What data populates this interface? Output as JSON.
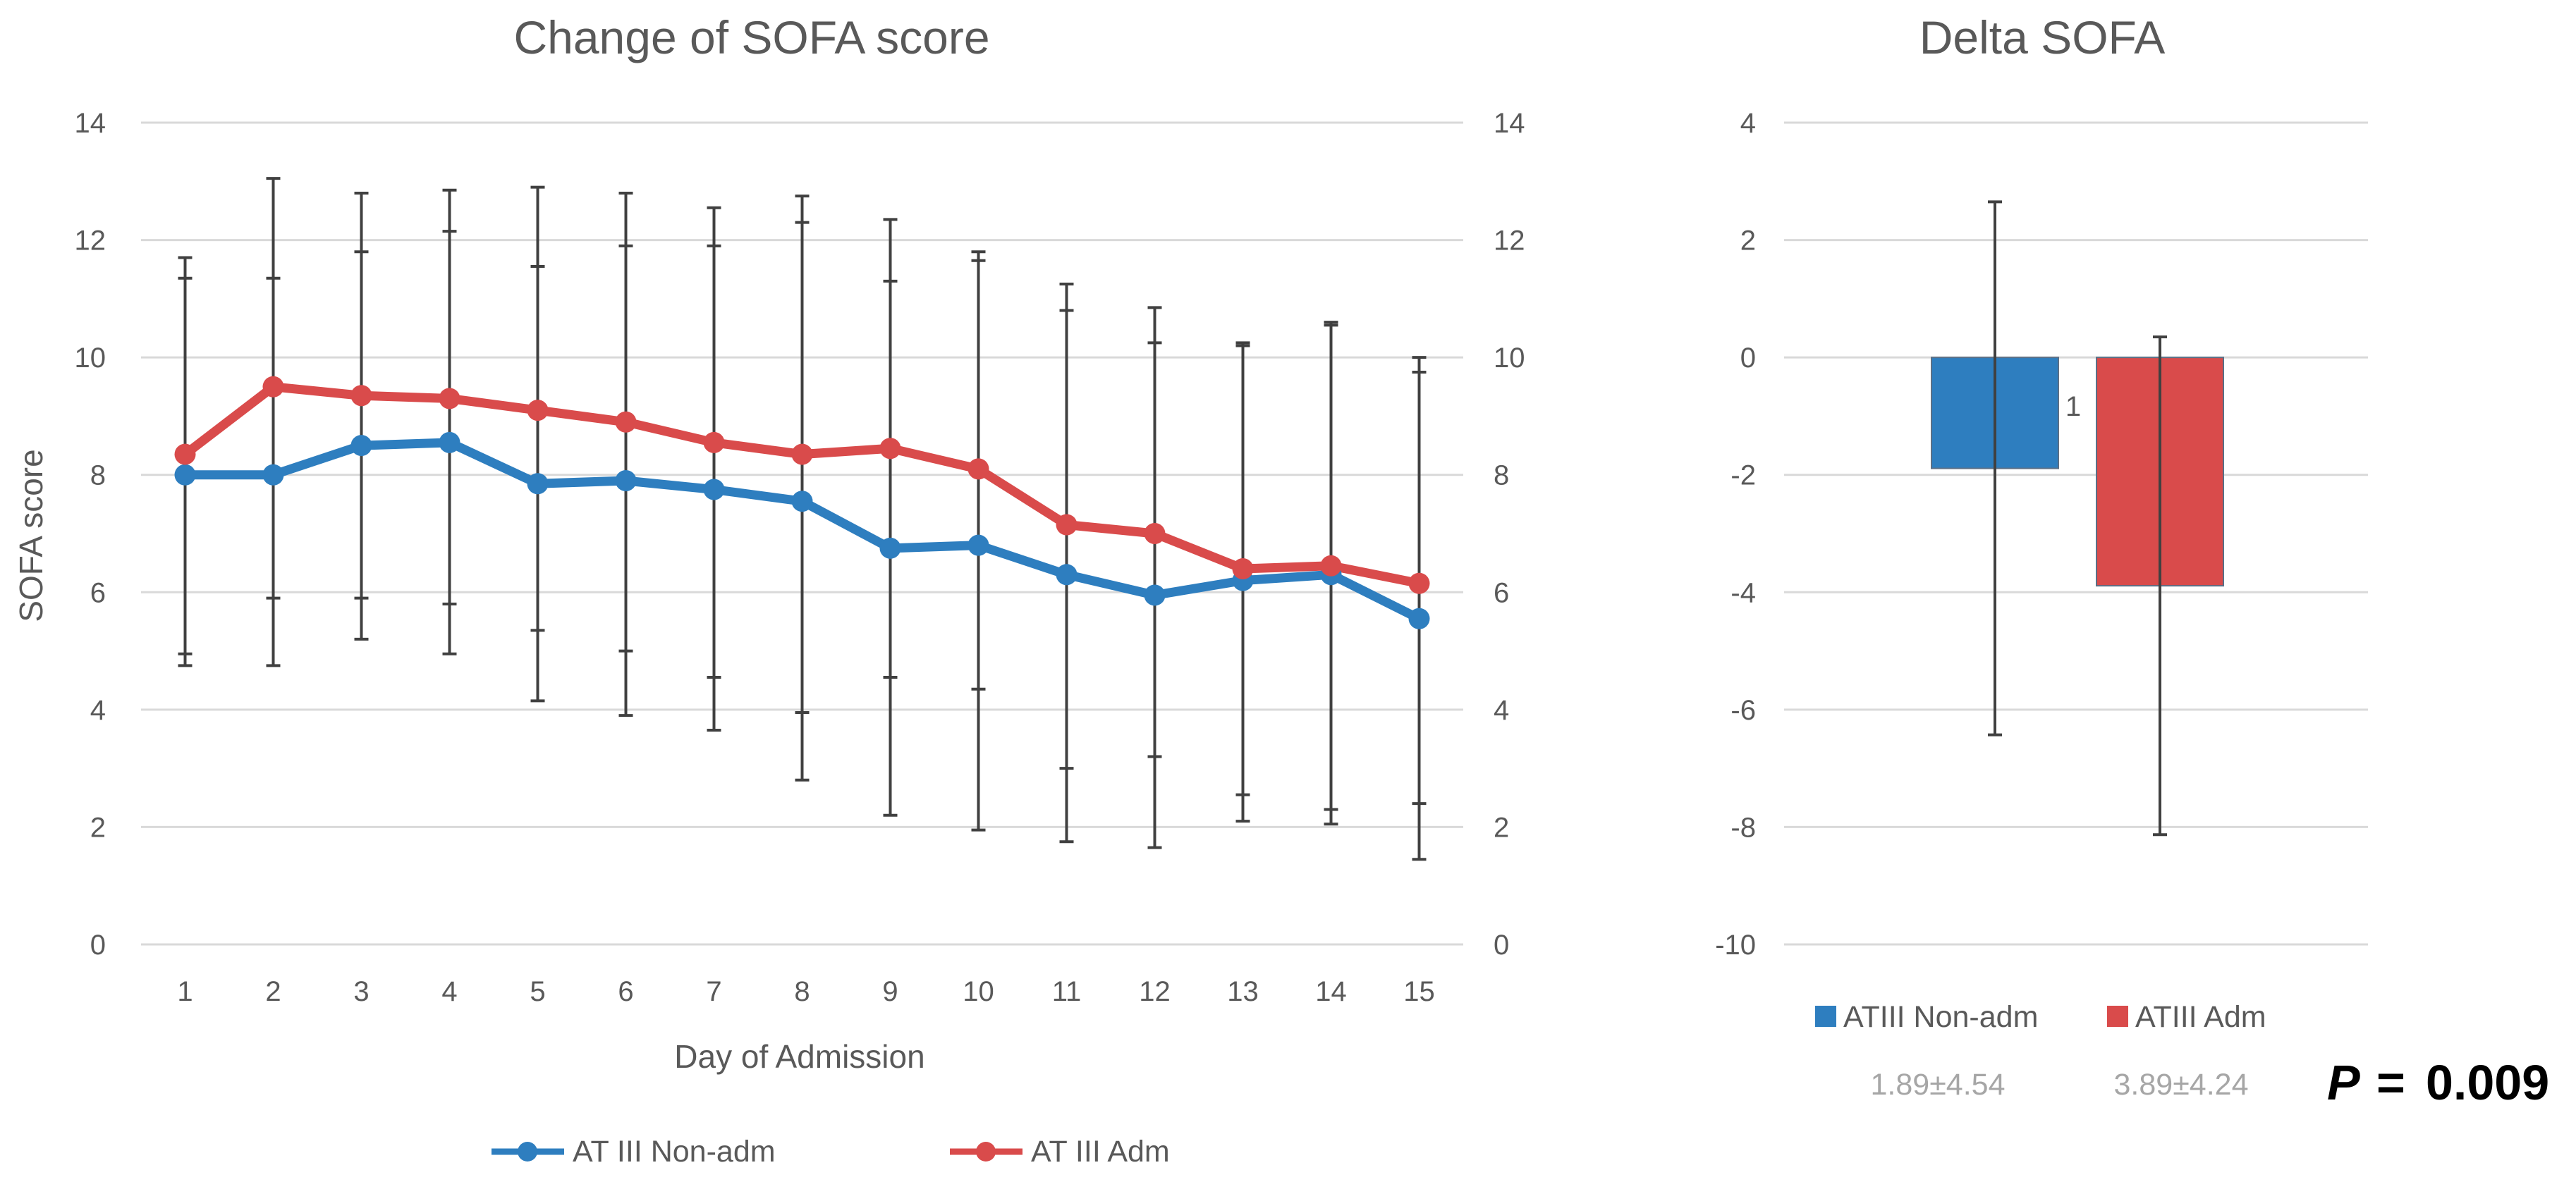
{
  "chart_data": [
    {
      "type": "line",
      "title": "Change of SOFA score",
      "xlabel": "Day of Admission",
      "ylabel": "SOFA score",
      "ylim": [
        0,
        14
      ],
      "yticks": [
        "0",
        "2",
        "4",
        "6",
        "8",
        "10",
        "12",
        "14"
      ],
      "categories": [
        "1",
        "2",
        "3",
        "4",
        "5",
        "6",
        "7",
        "8",
        "9",
        "10",
        "11",
        "12",
        "13",
        "14",
        "15"
      ],
      "grid": true,
      "legend_position": "bottom",
      "series": [
        {
          "name": "AT III Non-adm",
          "color": "#2e7ebf",
          "values": [
            8.0,
            8.0,
            8.5,
            8.55,
            7.85,
            7.9,
            7.75,
            7.55,
            6.75,
            6.8,
            6.3,
            5.95,
            6.2,
            6.3,
            5.55
          ],
          "err_upper": [
            11.35,
            11.35,
            11.8,
            12.15,
            11.55,
            11.9,
            11.9,
            12.3,
            11.3,
            11.65,
            10.8,
            10.25,
            10.2,
            10.55,
            9.75
          ],
          "err_lower": [
            4.95,
            4.75,
            5.2,
            4.95,
            4.15,
            3.9,
            3.65,
            2.8,
            2.2,
            1.95,
            1.75,
            1.65,
            2.1,
            2.05,
            1.45
          ]
        },
        {
          "name": "AT III Adm",
          "color": "#d94b4b",
          "values": [
            8.35,
            9.5,
            9.35,
            9.3,
            9.1,
            8.9,
            8.55,
            8.35,
            8.45,
            8.1,
            7.15,
            7.0,
            6.4,
            6.45,
            6.15
          ],
          "err_upper": [
            11.7,
            13.05,
            12.8,
            12.85,
            12.9,
            12.8,
            12.55,
            12.75,
            12.35,
            11.8,
            11.25,
            10.85,
            10.25,
            10.6,
            10.0
          ],
          "err_lower": [
            4.75,
            5.9,
            5.9,
            5.8,
            5.35,
            5.0,
            4.55,
            3.95,
            4.55,
            4.35,
            3.0,
            3.2,
            2.55,
            2.3,
            2.4
          ]
        }
      ]
    },
    {
      "type": "bar",
      "title": "Delta SOFA",
      "ylim": [
        -10,
        4
      ],
      "yticks": [
        "-10",
        "-8",
        "-6",
        "-4",
        "-2",
        "0",
        "2",
        "4"
      ],
      "grid": true,
      "legend_position": "bottom",
      "annotation": "1",
      "series": [
        {
          "name": "ATIII Non-adm",
          "color": "#2e7ebf",
          "value": -1.89,
          "err_upper": 2.65,
          "err_lower": -6.43,
          "stat": "1.89±4.54"
        },
        {
          "name": "ATIII Adm",
          "color": "#d94b4b",
          "value": -3.89,
          "err_upper": 0.35,
          "err_lower": -8.13,
          "stat": "3.89±4.24"
        }
      ]
    }
  ],
  "p_value": {
    "label": "P",
    "equals": "=",
    "value": "0.009"
  }
}
